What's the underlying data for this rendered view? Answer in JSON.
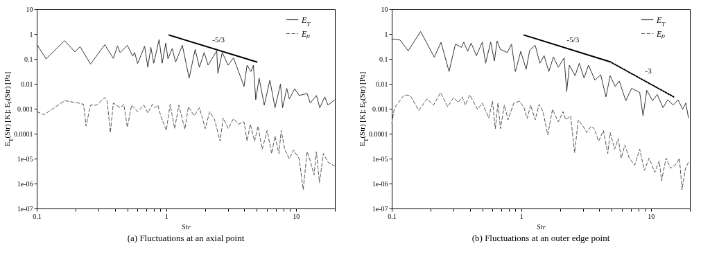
{
  "chart_data": [
    {
      "type": "line",
      "title": "(a) Fluctuations at an axial point",
      "xlabel": "Str",
      "ylabel": "E$_{T}$(Str) [K];   Eₚ(Str) [Pa]",
      "log": "xy",
      "grid": false,
      "legend": "top right",
      "xlim": [
        0.1,
        20
      ],
      "ylim": [
        1e-07,
        10
      ],
      "xticks": [
        0.1,
        {
          "value": 0.2,
          "label": null
        },
        {
          "value": 0.3,
          "label": null
        },
        {
          "value": 0.4,
          "label": null
        },
        {
          "value": 0.5,
          "label": null
        },
        {
          "value": 0.6,
          "label": null
        },
        {
          "value": 0.7,
          "label": null
        },
        {
          "value": 0.8,
          "label": null
        },
        {
          "value": 0.9,
          "label": null
        },
        1,
        {
          "value": 2,
          "label": null
        },
        {
          "value": 3,
          "label": null
        },
        {
          "value": 4,
          "label": null
        },
        {
          "value": 5,
          "label": null
        },
        {
          "value": 6,
          "label": null
        },
        {
          "value": 7,
          "label": null
        },
        {
          "value": 8,
          "label": null
        },
        {
          "value": 9,
          "label": null
        },
        10,
        {
          "value": 20,
          "label": null
        }
      ],
      "yticks": [
        {
          "value": 1e-07,
          "label": "1e-07"
        },
        {
          "value": 1e-06,
          "label": "1e-06"
        },
        {
          "value": 1e-05,
          "label": "1e-05"
        },
        0.0001,
        0.001,
        0.01,
        0.1,
        1,
        10
      ],
      "series": [
        {
          "name": "E$_{T}$",
          "color": "#333333",
          "line_style": "solid",
          "x": [
            0.1,
            0.118,
            0.164,
            0.197,
            0.216,
            0.26,
            0.335,
            0.39,
            0.42,
            0.44,
            0.5,
            0.55,
            0.57,
            0.6,
            0.68,
            0.72,
            0.76,
            0.8,
            0.88,
            0.93,
            0.99,
            1.03,
            1.11,
            1.18,
            1.33,
            1.5,
            1.67,
            1.8,
            1.96,
            2.1,
            2.45,
            2.5,
            2.7,
            3.0,
            3.3,
            3.98,
            4.2,
            4.5,
            4.7,
            4.9,
            5.2,
            5.7,
            6.3,
            6.9,
            7.6,
            7.9,
            8.5,
            8.9,
            9.8,
            10.6,
            12.2,
            12.9,
            14.4,
            15.3,
            16.7,
            17.7,
            20
          ],
          "values": [
            0.39,
            0.1,
            0.54,
            0.19,
            0.31,
            0.062,
            0.37,
            0.105,
            0.33,
            0.18,
            0.35,
            0.13,
            0.18,
            0.065,
            0.32,
            0.046,
            0.29,
            0.067,
            0.6,
            0.067,
            0.43,
            0.1,
            0.26,
            0.075,
            0.35,
            0.017,
            0.24,
            0.046,
            0.18,
            0.056,
            0.21,
            0.026,
            0.18,
            0.056,
            0.11,
            0.0079,
            0.056,
            0.031,
            0.056,
            0.0023,
            0.017,
            0.0014,
            0.014,
            0.0011,
            0.0097,
            0.0011,
            0.0066,
            0.0025,
            0.0063,
            0.0034,
            0.0041,
            0.0017,
            0.0034,
            0.0011,
            0.003,
            0.0014,
            0.0023
          ]
        },
        {
          "name": "Eₚ",
          "color": "#555555",
          "line_style": "dashed",
          "x": [
            0.1,
            0.114,
            0.164,
            0.21,
            0.23,
            0.24,
            0.26,
            0.29,
            0.335,
            0.35,
            0.37,
            0.39,
            0.44,
            0.47,
            0.5,
            0.54,
            0.6,
            0.67,
            0.72,
            0.78,
            0.82,
            0.86,
            0.91,
            1.0,
            1.07,
            1.16,
            1.25,
            1.39,
            1.48,
            1.64,
            1.8,
            2.0,
            2.16,
            2.36,
            2.6,
            2.75,
            3.0,
            3.3,
            3.6,
            3.98,
            4.2,
            4.45,
            4.8,
            5.1,
            5.5,
            6.0,
            6.5,
            6.9,
            7.4,
            7.7,
            8.2,
            8.9,
            9.6,
            10.6,
            11.4,
            12.2,
            13.0,
            13.8,
            14.4,
            15.2,
            16.3,
            17.7,
            20
          ],
          "values": [
            0.00077,
            0.00058,
            0.0021,
            0.0017,
            0.0015,
            0.0002,
            0.0014,
            0.0014,
            0.0028,
            0.002,
            0.00011,
            0.0017,
            0.0011,
            0.0015,
            0.00018,
            0.0014,
            0.00077,
            0.0014,
            0.00068,
            0.0015,
            0.0011,
            0.0014,
            0.00048,
            0.000135,
            0.0015,
            0.00016,
            0.0014,
            0.00015,
            0.0012,
            0.00052,
            0.0011,
            0.00016,
            0.00077,
            0.00036,
            5e-05,
            0.00043,
            0.00016,
            0.0004,
            0.00024,
            0.0003,
            5e-05,
            0.00024,
            5e-05,
            0.0002,
            2.4e-05,
            0.000135,
            1.6e-05,
            8e-05,
            1.6e-05,
            0.000135,
            2.4e-05,
            9.8e-06,
            2.2e-05,
            1e-05,
            5.7e-07,
            1.9e-05,
            7.2e-06,
            2.2e-06,
            1.9e-05,
            1.1e-06,
            1.6e-05,
            7.2e-06,
            5e-06
          ]
        },
        {
          "type": "line",
          "name": "-5/3",
          "color": "#000000",
          "line_style": "solid",
          "x": [
            1.05,
            5
          ],
          "values": [
            0.9,
            0.075
          ]
        }
      ]
    },
    {
      "type": "line",
      "title": "(b) Fluctuations at an outer edge point",
      "xlabel": "Str",
      "ylabel": "E$_{T}$(Str) [K];   Eₚ(Str) [Pa]",
      "log": "xy",
      "grid": false,
      "legend": "top right",
      "xlim": [
        0.1,
        20
      ],
      "ylim": [
        1e-07,
        10
      ],
      "xticks": [
        0.1,
        {
          "value": 0.2,
          "label": null
        },
        {
          "value": 0.3,
          "label": null
        },
        {
          "value": 0.4,
          "label": null
        },
        {
          "value": 0.5,
          "label": null
        },
        {
          "value": 0.6,
          "label": null
        },
        {
          "value": 0.7,
          "label": null
        },
        {
          "value": 0.8,
          "label": null
        },
        {
          "value": 0.9,
          "label": null
        },
        1,
        {
          "value": 2,
          "label": null
        },
        {
          "value": 3,
          "label": null
        },
        {
          "value": 4,
          "label": null
        },
        {
          "value": 5,
          "label": null
        },
        {
          "value": 6,
          "label": null
        },
        {
          "value": 7,
          "label": null
        },
        {
          "value": 8,
          "label": null
        },
        {
          "value": 9,
          "label": null
        },
        10,
        {
          "value": 20,
          "label": null
        }
      ],
      "yticks": [
        {
          "value": 1e-07,
          "label": "1e-07"
        },
        {
          "value": 1e-06,
          "label": "1e-06"
        },
        {
          "value": 1e-05,
          "label": "1e-05"
        },
        0.0001,
        0.001,
        0.01,
        0.1,
        1,
        10
      ],
      "series": [
        {
          "name": "E$_{T}$",
          "color": "#333333",
          "line_style": "solid",
          "x": [
            0.1,
            0.116,
            0.134,
            0.167,
            0.213,
            0.24,
            0.277,
            0.31,
            0.345,
            0.36,
            0.385,
            0.41,
            0.45,
            0.5,
            0.53,
            0.58,
            0.62,
            0.65,
            0.69,
            0.78,
            0.84,
            0.9,
            0.99,
            1.09,
            1.16,
            1.28,
            1.39,
            1.5,
            1.63,
            1.77,
            1.93,
            2.14,
            2.24,
            2.35,
            2.6,
            2.8,
            3.05,
            3.3,
            3.7,
            4.1,
            4.5,
            4.85,
            5.3,
            5.7,
            6.4,
            7.1,
            8.2,
            8.7,
            9.3,
            10.3,
            11.2,
            12.4,
            13.5,
            14.9,
            16.2,
            17.6,
            18.6,
            19.5
          ],
          "values": [
            0.63,
            0.57,
            0.21,
            1.25,
            0.117,
            0.46,
            0.031,
            0.39,
            0.29,
            0.47,
            0.2,
            0.43,
            0.134,
            0.47,
            0.067,
            0.47,
            0.082,
            0.52,
            0.24,
            0.18,
            0.39,
            0.031,
            0.2,
            0.038,
            0.22,
            0.35,
            0.067,
            0.134,
            0.031,
            0.12,
            0.046,
            0.11,
            0.0049,
            0.056,
            0.021,
            0.067,
            0.017,
            0.056,
            0.014,
            0.023,
            0.003,
            0.021,
            0.0079,
            0.013,
            0.0021,
            0.0066,
            0.0045,
            0.00052,
            0.0055,
            0.0021,
            0.0037,
            0.0011,
            0.0023,
            0.0014,
            0.0023,
            0.00095,
            0.0017,
            0.00043
          ]
        },
        {
          "name": "Eₚ",
          "color": "#555555",
          "line_style": "dashed",
          "x": [
            0.1,
            0.105,
            0.125,
            0.139,
            0.162,
            0.187,
            0.21,
            0.238,
            0.27,
            0.3,
            0.325,
            0.35,
            0.37,
            0.4,
            0.46,
            0.5,
            0.56,
            0.6,
            0.63,
            0.66,
            0.69,
            0.74,
            0.79,
            0.875,
            0.97,
            1.05,
            1.11,
            1.18,
            1.28,
            1.37,
            1.47,
            1.6,
            1.74,
            1.93,
            2.1,
            2.2,
            2.4,
            2.58,
            2.75,
            3.0,
            3.2,
            3.45,
            3.65,
            3.95,
            4.3,
            4.65,
            4.85,
            5.25,
            5.6,
            5.9,
            6.3,
            6.8,
            7.5,
            8.2,
            8.9,
            9.7,
            10.7,
            11.6,
            12.1,
            13.1,
            14.2,
            15.7,
            16.6,
            17.4,
            18.5,
            19.5
          ],
          "values": [
            0.00026,
            0.0011,
            0.0036,
            0.0034,
            0.00085,
            0.0025,
            0.0014,
            0.0045,
            0.0012,
            0.0028,
            0.0018,
            0.003,
            0.0014,
            0.0036,
            0.00095,
            0.0017,
            0.00043,
            0.002,
            0.00016,
            0.0017,
            0.00016,
            0.0014,
            0.00036,
            0.0017,
            0.002,
            0.0011,
            0.0004,
            0.0014,
            0.00036,
            0.0015,
            0.00077,
            9e-05,
            0.00095,
            0.0003,
            0.00077,
            0.00036,
            0.00052,
            1.74e-05,
            0.00036,
            0.0002,
            0.00011,
            0.0002,
            0.00016,
            5e-05,
            0.000135,
            1.6e-05,
            0.00011,
            2.4e-05,
            6.3e-05,
            1.05e-05,
            3.5e-05,
            1.05e-05,
            5.5e-06,
            2.4e-05,
            3.4e-06,
            1.05e-05,
            2.8e-06,
            8.2e-06,
            1.3e-06,
            1.05e-05,
            4.1e-06,
            6e-06,
            1.05e-05,
            5.7e-07,
            4.1e-06,
            7.2e-06
          ]
        },
        {
          "type": "line",
          "name": "-5/3",
          "color": "#000000",
          "line_style": "solid",
          "x": [
            1.05,
            4.9
          ],
          "values": [
            0.9,
            0.075
          ]
        },
        {
          "type": "line",
          "name": "-3",
          "color": "#000000",
          "line_style": "dotted",
          "x": [
            5,
            15
          ],
          "values": [
            0.07,
            0.003
          ]
        }
      ]
    }
  ]
}
